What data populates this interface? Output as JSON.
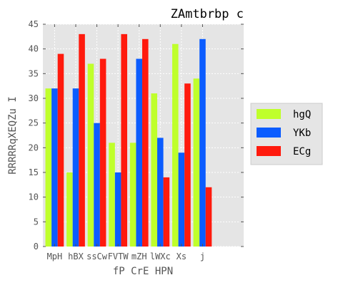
{
  "chart_data": {
    "type": "bar",
    "title": "ZAmtbrbp c",
    "xlabel": "fP CrE HPN",
    "ylabel": "RRRRRqXEQZu I",
    "categories": [
      "MpH",
      "hBX",
      "ssCw",
      "FVTW",
      "mZH",
      "lWXc",
      "Xs",
      "j"
    ],
    "series": [
      {
        "name": "hgQ",
        "color": "#bfff2b",
        "values": [
          32,
          15,
          37,
          21,
          21,
          31,
          41,
          34
        ]
      },
      {
        "name": "YKb",
        "color": "#0b5cff",
        "values": [
          32,
          32,
          25,
          15,
          38,
          22,
          19,
          42
        ]
      },
      {
        "name": "ECg",
        "color": "#ff1a0d",
        "values": [
          39,
          43,
          38,
          43,
          42,
          14,
          33,
          12
        ]
      }
    ],
    "ylim": [
      0,
      45
    ],
    "yticks": [
      0,
      5,
      10,
      15,
      20,
      25,
      30,
      35,
      40,
      45
    ],
    "grid": true,
    "legend_position": "center-right",
    "colors": {
      "plot_bg": "#e5e5e5",
      "grid": "#ffffff",
      "text": "#555555",
      "title": "#000000"
    }
  }
}
